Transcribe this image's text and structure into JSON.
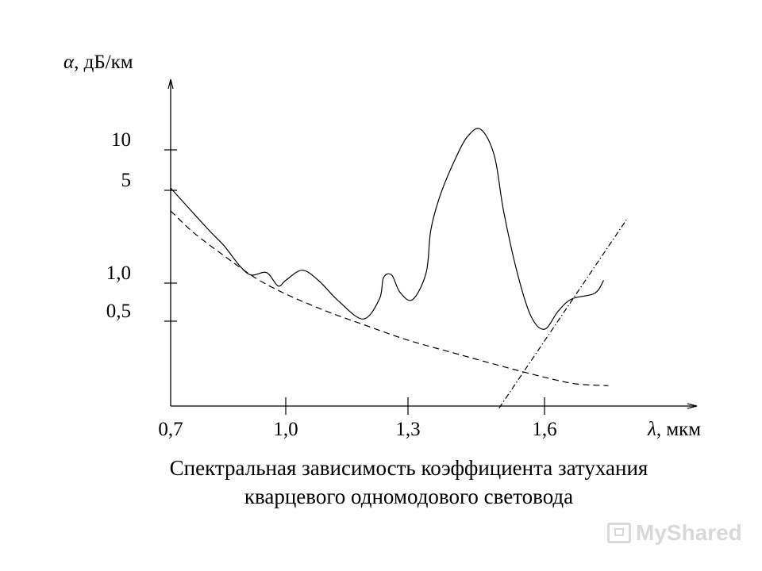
{
  "chart_data": {
    "type": "line",
    "y_axis_label_symbol": "α",
    "y_axis_label_unit": ", дБ/км",
    "x_axis_label_symbol": "λ",
    "x_axis_label_unit": ", мкм",
    "y_ticks": [
      {
        "value": 10,
        "label": "10"
      },
      {
        "value": 5,
        "label": "5"
      },
      {
        "value": 1.0,
        "label": "1,0"
      },
      {
        "value": 0.5,
        "label": "0,5"
      }
    ],
    "x_ticks": [
      {
        "value": 0.7,
        "label": "0,7"
      },
      {
        "value": 1.0,
        "label": "1,0"
      },
      {
        "value": 1.3,
        "label": "1,3"
      },
      {
        "value": 1.6,
        "label": "1,6"
      }
    ],
    "series": [
      {
        "style": "solid",
        "points": [
          [
            0.7,
            5.2
          ],
          [
            0.75,
            3.6
          ],
          [
            0.8,
            2.5
          ],
          [
            0.84,
            1.9
          ],
          [
            0.88,
            1.35
          ],
          [
            0.91,
            1.15
          ],
          [
            0.95,
            1.2
          ],
          [
            0.98,
            0.95
          ],
          [
            1.0,
            1.05
          ],
          [
            1.04,
            1.25
          ],
          [
            1.08,
            1.05
          ],
          [
            1.13,
            0.72
          ],
          [
            1.19,
            0.52
          ],
          [
            1.23,
            0.75
          ],
          [
            1.24,
            1.1
          ],
          [
            1.26,
            1.15
          ],
          [
            1.28,
            0.85
          ],
          [
            1.31,
            0.74
          ],
          [
            1.34,
            1.2
          ],
          [
            1.35,
            2.5
          ],
          [
            1.37,
            4.5
          ],
          [
            1.4,
            8.0
          ],
          [
            1.43,
            11.5
          ],
          [
            1.46,
            12.5
          ],
          [
            1.49,
            9.0
          ],
          [
            1.51,
            3.5
          ],
          [
            1.54,
            1.2
          ],
          [
            1.57,
            0.55
          ],
          [
            1.6,
            0.45
          ],
          [
            1.63,
            0.6
          ],
          [
            1.66,
            0.75
          ],
          [
            1.71,
            0.83
          ],
          [
            1.73,
            1.05
          ]
        ]
      },
      {
        "style": "dashed",
        "points": [
          [
            0.7,
            3.5
          ],
          [
            0.76,
            2.4
          ],
          [
            0.84,
            1.6
          ],
          [
            0.92,
            1.1
          ],
          [
            1.0,
            0.82
          ],
          [
            1.1,
            0.6
          ],
          [
            1.2,
            0.47
          ],
          [
            1.3,
            0.39
          ],
          [
            1.4,
            0.33
          ],
          [
            1.5,
            0.28
          ],
          [
            1.6,
            0.24
          ],
          [
            1.67,
            0.22
          ],
          [
            1.74,
            0.215
          ]
        ]
      },
      {
        "style": "dash-dot",
        "points": [
          [
            1.5,
            0.16
          ],
          [
            1.78,
            3.0
          ]
        ]
      }
    ],
    "grid": false,
    "legend": "none"
  },
  "caption": {
    "line1": "Спектральная зависимость коэффициента затухания",
    "line2": "кварцевого одномодового световода"
  },
  "watermark": {
    "text": "MyShared"
  }
}
